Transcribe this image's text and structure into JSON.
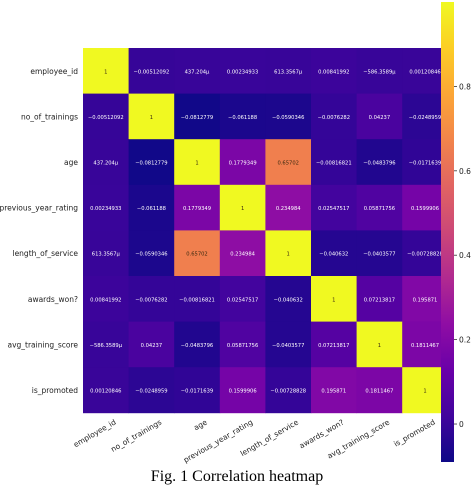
{
  "caption": "Fig.  1 Correlation heatmap",
  "chart_data": {
    "type": "heatmap",
    "title": "",
    "labels": [
      "employee_id",
      "no_of_trainings",
      "age",
      "previous_year_rating",
      "length_of_service",
      "awards_won?",
      "avg_training_score",
      "is_promoted"
    ],
    "cell_labels": [
      [
        "1",
        "−0.00512092",
        "437.204μ",
        "0.00234933",
        "613.3567μ",
        "0.00841992",
        "−586.3589μ",
        "0.00120846"
      ],
      [
        "−0.00512092",
        "1",
        "−0.0812779",
        "−0.061188",
        "−0.0590346",
        "−0.0076282",
        "0.04237",
        "−0.0248959"
      ],
      [
        "437.204μ",
        "−0.0812779",
        "1",
        "0.1779349",
        "0.65702",
        "−0.00816821",
        "−0.0483796",
        "−0.0171639"
      ],
      [
        "0.00234933",
        "−0.061188",
        "0.1779349",
        "1",
        "0.234984",
        "0.02547517",
        "0.05871756",
        "0.1599906"
      ],
      [
        "613.3567μ",
        "−0.0590346",
        "0.65702",
        "0.234984",
        "1",
        "−0.040632",
        "−0.0403577",
        "−0.00728828"
      ],
      [
        "0.00841992",
        "−0.0076282",
        "−0.00816821",
        "0.02547517",
        "−0.040632",
        "1",
        "0.07213817",
        "0.195871"
      ],
      [
        "−586.3589μ",
        "0.04237",
        "−0.0483796",
        "0.05871756",
        "−0.0403577",
        "0.07213817",
        "1",
        "0.1811467"
      ],
      [
        "0.00120846",
        "−0.0248959",
        "−0.0171639",
        "0.1599906",
        "−0.00728828",
        "0.195871",
        "0.1811467",
        "1"
      ]
    ],
    "values": [
      [
        1,
        -0.0051,
        0.0004,
        0.0023,
        0.0006,
        0.0084,
        -0.0006,
        0.0012
      ],
      [
        -0.0051,
        1,
        -0.0813,
        -0.0612,
        -0.059,
        -0.0076,
        0.0424,
        -0.0249
      ],
      [
        0.0004,
        -0.0813,
        1,
        0.1779,
        0.657,
        -0.0082,
        -0.0484,
        -0.0172
      ],
      [
        0.0023,
        -0.0612,
        0.1779,
        1,
        0.235,
        0.0255,
        0.0587,
        0.16
      ],
      [
        0.0006,
        -0.059,
        0.657,
        0.235,
        1,
        -0.0406,
        -0.0404,
        -0.0073
      ],
      [
        0.0084,
        -0.0076,
        -0.0082,
        0.0255,
        -0.0406,
        1,
        0.0721,
        0.1959
      ],
      [
        -0.0006,
        0.0424,
        -0.0484,
        0.0587,
        -0.0404,
        0.0721,
        1,
        0.1811
      ],
      [
        0.0012,
        -0.0249,
        -0.0172,
        0.16,
        -0.0073,
        0.1959,
        0.1811,
        1
      ]
    ],
    "colorbar": {
      "ticks": [
        0,
        0.2,
        0.4,
        0.6,
        0.8
      ],
      "tick_labels": [
        "0",
        "0.2",
        "0.4",
        "0.6",
        "0.8"
      ],
      "range": [
        -0.09,
        1
      ],
      "colormap": "plasma",
      "stops": [
        "#0d0887",
        "#41049d",
        "#6a00a8",
        "#8f0da4",
        "#b12a90",
        "#cc4778",
        "#e16462",
        "#f2844b",
        "#fca636",
        "#fcce25",
        "#f0f921"
      ]
    }
  }
}
